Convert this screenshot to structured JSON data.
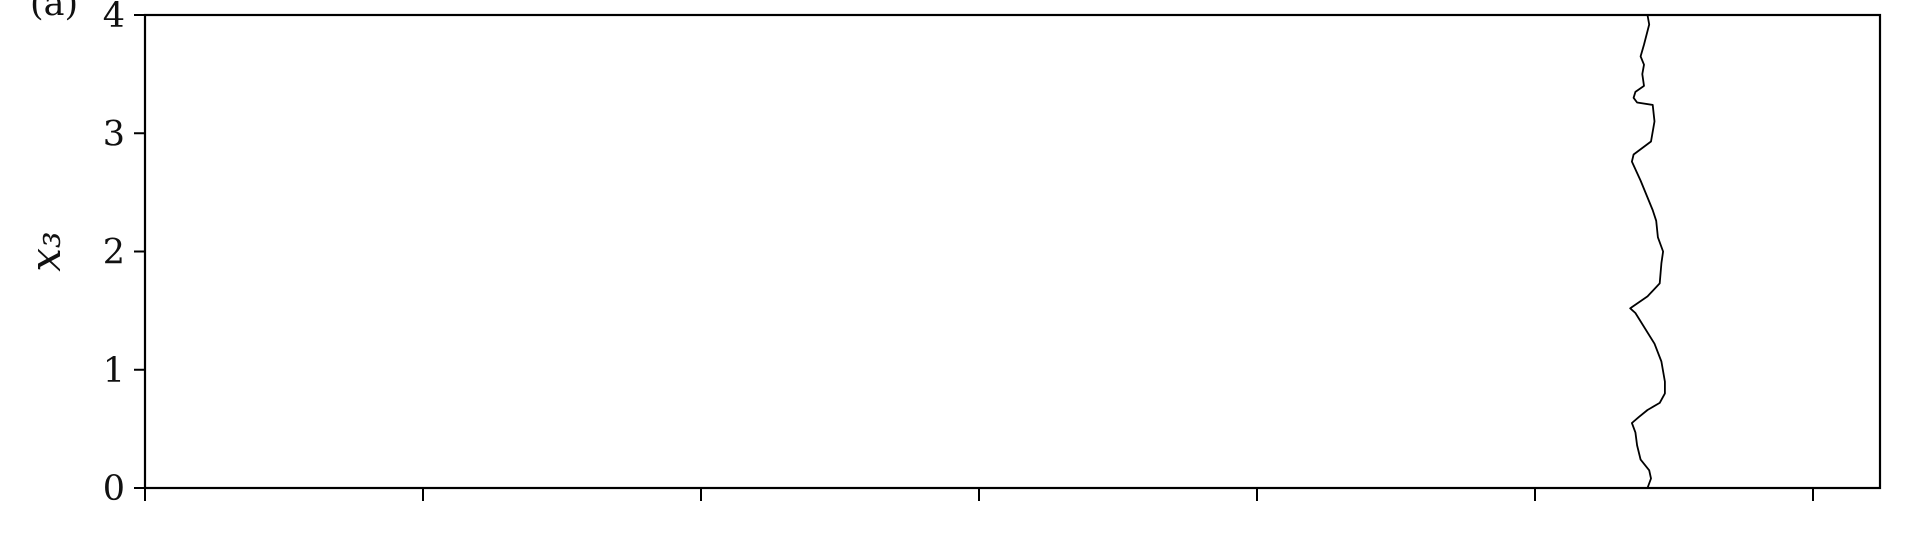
{
  "chart_data": {
    "type": "line",
    "panel_label": "(a)",
    "title": "",
    "xlabel": "",
    "ylabel": "x₃",
    "ylim": [
      0,
      4
    ],
    "xlim": [
      0,
      1
    ],
    "y_ticks": [
      "0",
      "1",
      "2",
      "3",
      "4"
    ],
    "x_ticks_count": 7,
    "grid": false,
    "legend": "none",
    "line_color": "#000000",
    "series": [
      {
        "x": [
          0.866,
          0.868,
          0.867,
          0.862,
          0.86,
          0.859,
          0.857,
          0.861,
          0.866,
          0.873,
          0.876,
          0.876,
          0.874,
          0.87,
          0.859,
          0.856,
          0.857,
          0.866,
          0.873,
          0.874,
          0.875,
          0.872,
          0.871,
          0.869,
          0.862,
          0.857,
          0.858,
          0.868,
          0.87,
          0.869,
          0.86,
          0.858,
          0.859,
          0.864,
          0.863,
          0.864,
          0.862,
          0.864,
          0.867,
          0.866
        ],
        "y": [
          0.0,
          0.08,
          0.15,
          0.24,
          0.36,
          0.47,
          0.55,
          0.6,
          0.66,
          0.72,
          0.8,
          0.9,
          1.07,
          1.22,
          1.48,
          1.52,
          1.53,
          1.62,
          1.73,
          1.9,
          2.0,
          2.12,
          2.26,
          2.35,
          2.6,
          2.76,
          2.82,
          2.93,
          3.1,
          3.24,
          3.26,
          3.3,
          3.35,
          3.4,
          3.5,
          3.58,
          3.65,
          3.75,
          3.92,
          4.0
        ]
      }
    ]
  }
}
